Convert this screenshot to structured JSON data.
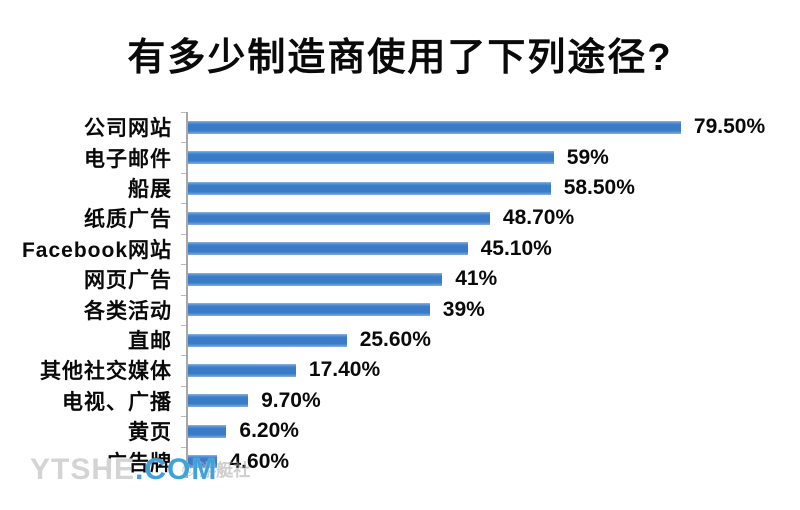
{
  "chart_data": {
    "type": "bar",
    "orientation": "horizontal",
    "title": "有多少制造商使用了下列途径?",
    "categories": [
      "公司网站",
      "电子邮件",
      "船展",
      "纸质广告",
      "Facebook网站",
      "网页广告",
      "各类活动",
      "直邮",
      "其他社交媒体",
      "电视、广播",
      "黄页",
      "广告牌"
    ],
    "values": [
      79.5,
      59,
      58.5,
      48.7,
      45.1,
      41,
      39,
      25.6,
      17.4,
      9.7,
      6.2,
      4.6
    ],
    "value_labels": [
      "79.50%",
      "59%",
      "58.50%",
      "48.70%",
      "45.10%",
      "41%",
      "39%",
      "25.60%",
      "17.40%",
      "9.70%",
      "6.20%",
      "4.60%"
    ],
    "xlabel": "",
    "ylabel": "",
    "xlim": [
      0,
      100
    ],
    "grid": false,
    "legend": null,
    "bar_color": "#3a7bc8",
    "axis_color": "#a8a8a8"
  },
  "watermark": {
    "site_gray": "YTSHE",
    "site_blue": ".COM",
    "credit": "© 游艇社"
  }
}
